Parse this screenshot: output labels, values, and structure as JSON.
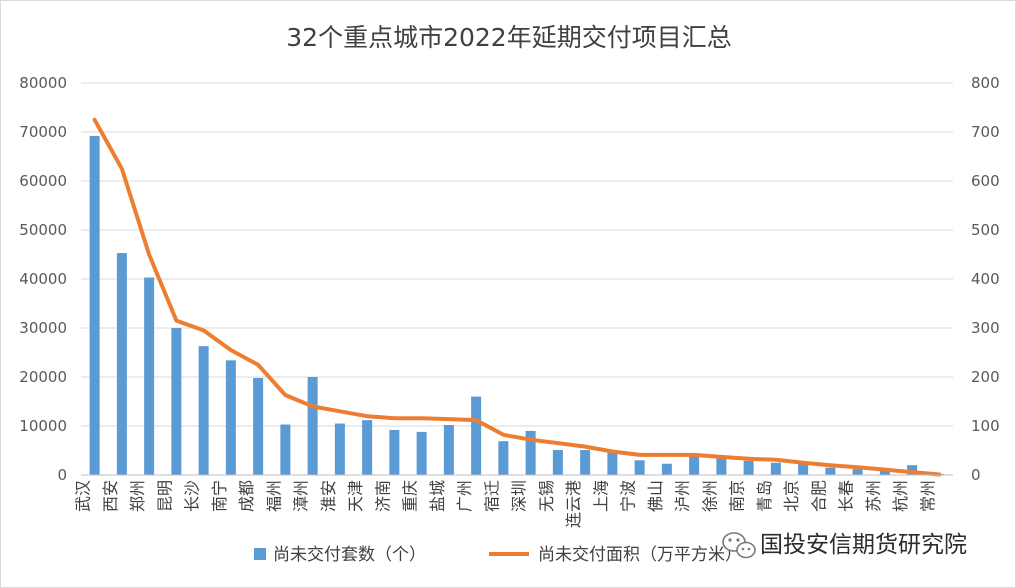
{
  "chart_data": {
    "type": "bar",
    "title": "32个重点城市2022年延期交付项目汇总",
    "categories": [
      "武汉",
      "西安",
      "郑州",
      "昆明",
      "长沙",
      "南宁",
      "成都",
      "福州",
      "漳州",
      "淮安",
      "天津",
      "济南",
      "重庆",
      "盐城",
      "广州",
      "宿迁",
      "深圳",
      "无锡",
      "连云港",
      "上海",
      "宁波",
      "佛山",
      "泸州",
      "徐州",
      "南京",
      "青岛",
      "北京",
      "合肥",
      "长春",
      "苏州",
      "杭州",
      "常州"
    ],
    "series": [
      {
        "name": "尚未交付套数（个）",
        "type": "bar",
        "axis": "left",
        "color": "#5b9bd5",
        "values": [
          69200,
          45300,
          40300,
          30000,
          26300,
          23400,
          19800,
          10300,
          20000,
          10500,
          11200,
          9200,
          8800,
          10200,
          16000,
          6900,
          9000,
          5100,
          5100,
          4500,
          3000,
          2300,
          4000,
          3600,
          2900,
          2500,
          2400,
          1500,
          1200,
          1000,
          2000,
          200
        ]
      },
      {
        "name": "尚未交付面积（万平方米）",
        "type": "line",
        "axis": "right",
        "color": "#ed7d31",
        "values": [
          725,
          625,
          450,
          315,
          295,
          255,
          225,
          163,
          140,
          130,
          120,
          116,
          116,
          114,
          112,
          82,
          72,
          65,
          58,
          48,
          41,
          41,
          41,
          37,
          33,
          31,
          25,
          20,
          16,
          11,
          6,
          1
        ]
      }
    ],
    "y_left": {
      "min": 0,
      "max": 80000,
      "step": 10000
    },
    "y_right": {
      "min": 0,
      "max": 800,
      "step": 100
    },
    "grid": true,
    "legend_position": "bottom"
  },
  "watermark": {
    "text": "国投安信期货研究院",
    "icon": "wechat-icon"
  }
}
